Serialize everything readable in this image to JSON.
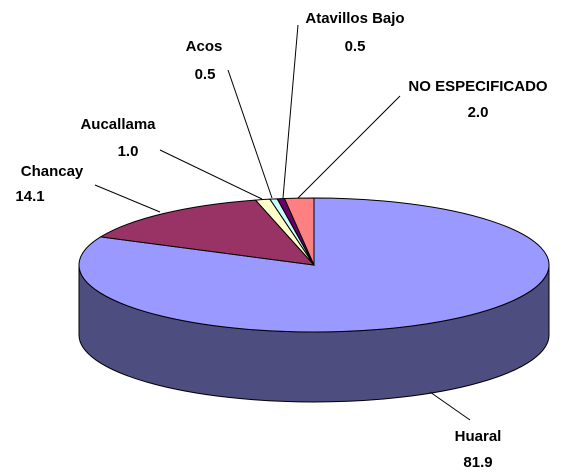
{
  "chart_data": {
    "type": "pie",
    "categories": [
      "Huaral",
      "Chancay",
      "Aucallama",
      "Acos",
      "Atavillos Bajo",
      "NO ESPECIFICADO"
    ],
    "values": [
      81.9,
      14.1,
      1.0,
      0.5,
      0.5,
      2.0
    ],
    "value_labels": [
      "81.9",
      "14.1",
      "1.0",
      "0.5",
      "0.5",
      "2.0"
    ],
    "colors": [
      "#9999ff",
      "#993366",
      "#ffffcc",
      "#ccffff",
      "#660066",
      "#ff8080"
    ]
  }
}
